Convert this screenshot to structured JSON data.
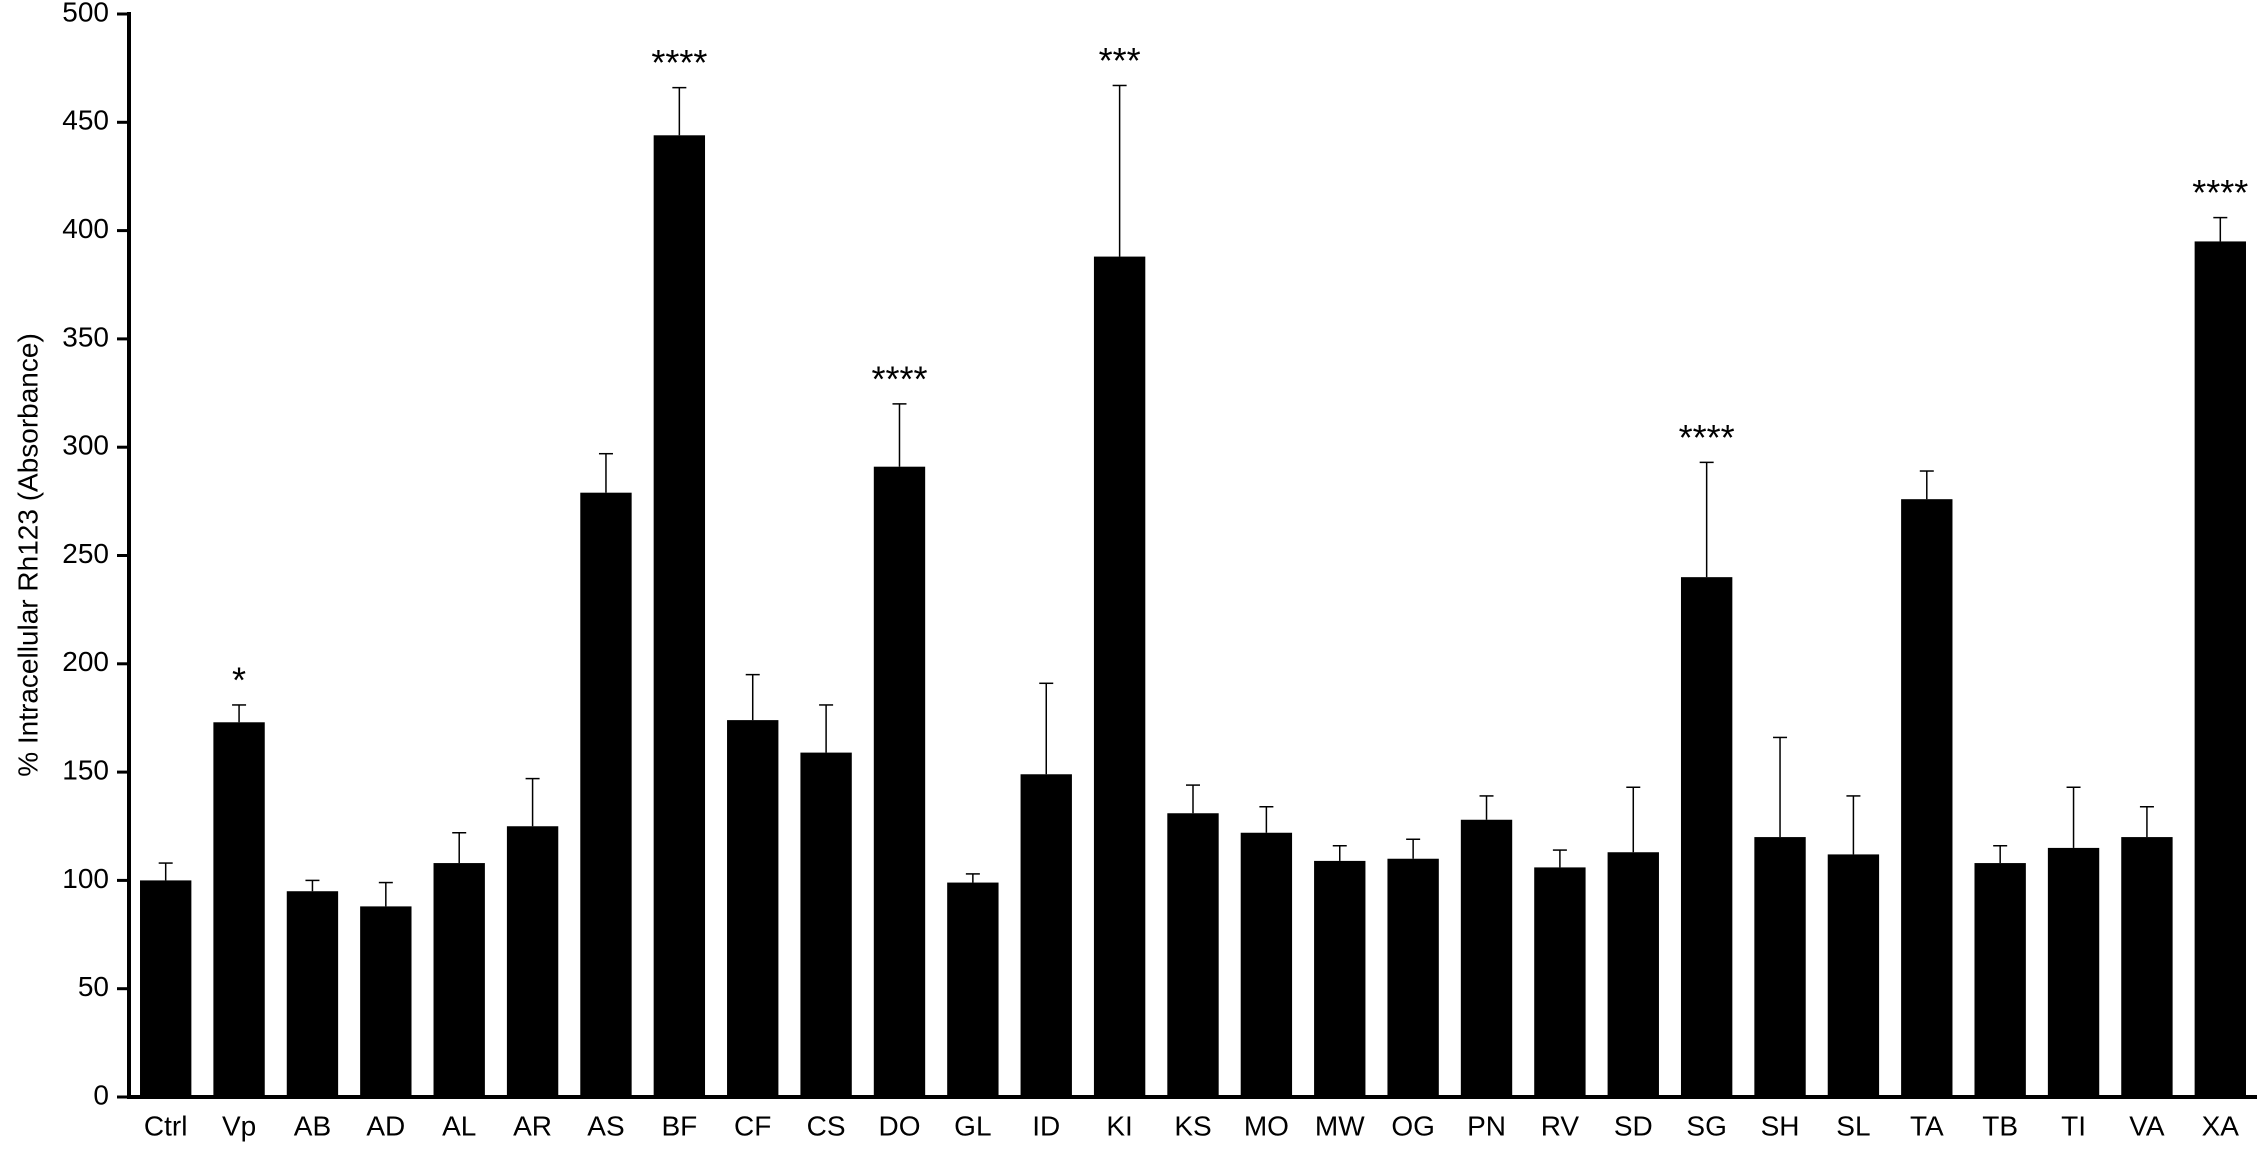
{
  "chart_data": {
    "type": "bar",
    "y_label": "% Intracellular Rh123  (Absorbance)",
    "categories": [
      "Ctrl",
      "Vp",
      "AB",
      "AD",
      "AL",
      "AR",
      "AS",
      "BF",
      "CF",
      "CS",
      "DO",
      "GL",
      "ID",
      "KI",
      "KS",
      "MO",
      "MW",
      "OG",
      "PN",
      "RV",
      "SD",
      "SG",
      "SH",
      "SL",
      "TA",
      "TB",
      "TI",
      "VA",
      "XA"
    ],
    "values": [
      100,
      173,
      95,
      88,
      108,
      125,
      279,
      444,
      174,
      159,
      291,
      99,
      149,
      388,
      131,
      122,
      109,
      110,
      128,
      106,
      113,
      240,
      120,
      112,
      276,
      108,
      115,
      120,
      395
    ],
    "errors": [
      8,
      8,
      5,
      11,
      14,
      22,
      18,
      22,
      21,
      22,
      29,
      4,
      42,
      79,
      13,
      12,
      7,
      9,
      11,
      8,
      30,
      53,
      46,
      27,
      13,
      8,
      28,
      14,
      11
    ],
    "significance": [
      null,
      "*",
      null,
      null,
      null,
      null,
      null,
      "****",
      null,
      null,
      "****",
      null,
      null,
      "***",
      null,
      null,
      null,
      null,
      null,
      null,
      null,
      "****",
      null,
      null,
      null,
      null,
      null,
      null,
      "****"
    ],
    "color": "#000000",
    "ylim": [
      0,
      500
    ],
    "yticks": [
      0,
      50,
      100,
      150,
      200,
      250,
      300,
      350,
      400,
      450,
      500
    ]
  }
}
